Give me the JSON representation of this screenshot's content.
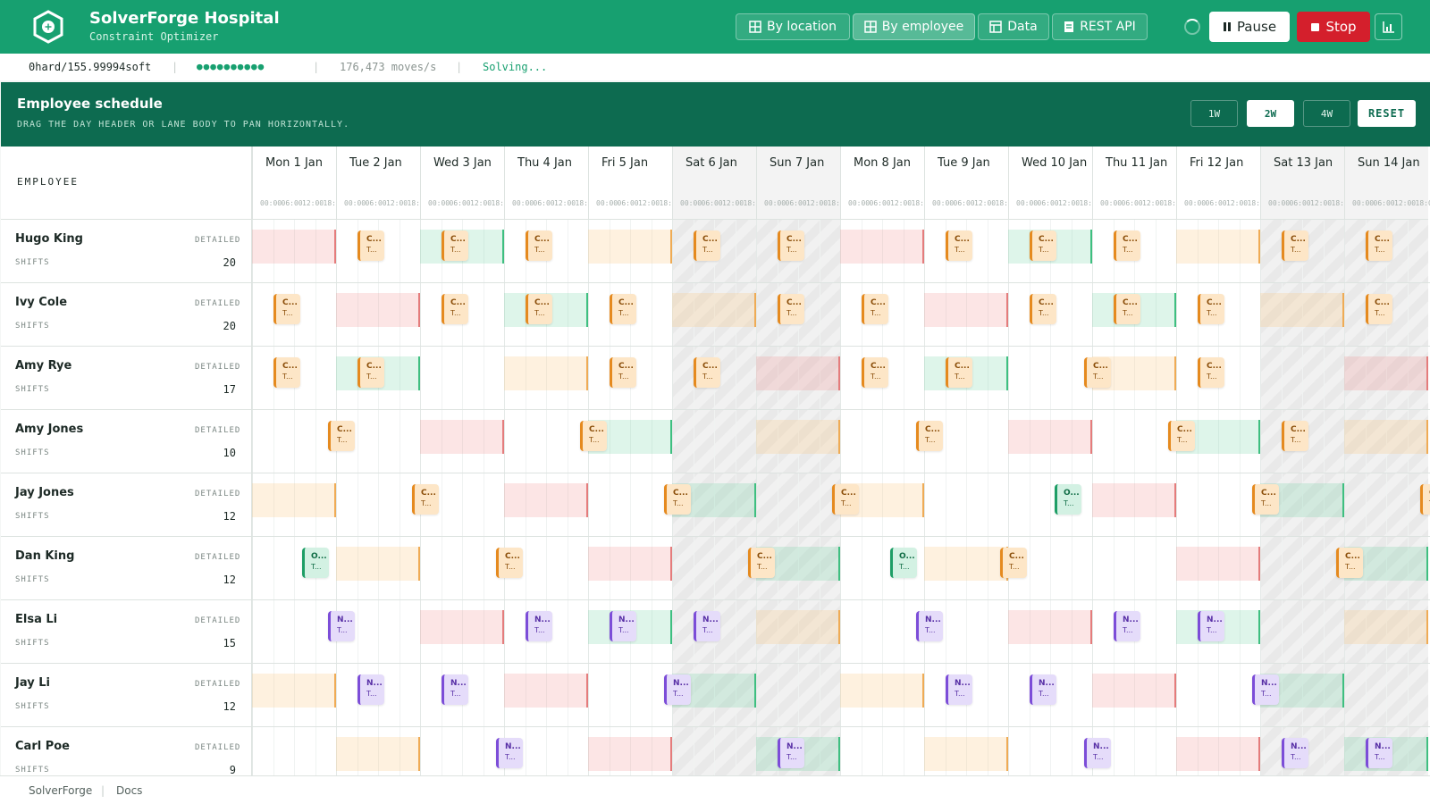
{
  "app": {
    "title": "SolverForge Hospital",
    "subtitle": "Constraint Optimizer"
  },
  "nav": [
    {
      "label": "By location",
      "icon": "grid-icon",
      "active": false
    },
    {
      "label": "By employee",
      "icon": "grid-icon",
      "active": true
    },
    {
      "label": "Data",
      "icon": "table-icon",
      "active": false
    },
    {
      "label": "REST API",
      "icon": "document-icon",
      "active": false
    }
  ],
  "controls": {
    "pause_label": "Pause",
    "stop_label": "Stop"
  },
  "status": {
    "score": "0hard/155.99994soft",
    "speed": "176,473 moves/s",
    "state": "Solving..."
  },
  "schedule": {
    "title": "Employee schedule",
    "hint": "DRAG THE DAY HEADER OR LANE BODY TO PAN HORIZONTALLY.",
    "zoom": [
      {
        "label": "1W",
        "active": false
      },
      {
        "label": "2W",
        "active": true
      },
      {
        "label": "4W",
        "active": false
      }
    ],
    "reset_label": "RESET",
    "employee_header": "EMPLOYEE",
    "detail_label": "DETAILED",
    "shifts_label": "SHIFTS",
    "hours": [
      "00:00",
      "06:00",
      "12:00",
      "18:00"
    ],
    "days": [
      {
        "label": "Mon 1 Jan",
        "weekend": false
      },
      {
        "label": "Tue 2 Jan",
        "weekend": false
      },
      {
        "label": "Wed 3 Jan",
        "weekend": false
      },
      {
        "label": "Thu 4 Jan",
        "weekend": false
      },
      {
        "label": "Fri 5 Jan",
        "weekend": false
      },
      {
        "label": "Sat 6 Jan",
        "weekend": true
      },
      {
        "label": "Sun 7 Jan",
        "weekend": true
      },
      {
        "label": "Mon 8 Jan",
        "weekend": false
      },
      {
        "label": "Tue 9 Jan",
        "weekend": false
      },
      {
        "label": "Wed 10 Jan",
        "weekend": false
      },
      {
        "label": "Thu 11 Jan",
        "weekend": false
      },
      {
        "label": "Fri 12 Jan",
        "weekend": false
      },
      {
        "label": "Sat 13 Jan",
        "weekend": true
      },
      {
        "label": "Sun 14 Jan",
        "weekend": true
      }
    ],
    "employees": [
      {
        "name": "Hugo King",
        "shifts": "20",
        "prefs": [
          [
            0,
            "unavailable"
          ],
          [
            2,
            "desired"
          ],
          [
            4,
            "undesired"
          ],
          [
            7,
            "unavailable"
          ],
          [
            9,
            "desired"
          ],
          [
            11,
            "undesired"
          ]
        ],
        "chips": [
          [
            1.25,
            "C...",
            "T...",
            "care"
          ],
          [
            2.25,
            "C...",
            "T...",
            "care"
          ],
          [
            3.25,
            "C...",
            "T...",
            "care"
          ],
          [
            5.25,
            "C...",
            "T...",
            "care"
          ],
          [
            6.25,
            "C...",
            "T...",
            "care"
          ],
          [
            8.25,
            "C...",
            "T...",
            "care"
          ],
          [
            9.25,
            "C...",
            "T...",
            "care"
          ],
          [
            10.25,
            "C...",
            "T...",
            "care"
          ],
          [
            12.25,
            "C...",
            "T...",
            "care"
          ],
          [
            13.25,
            "C...",
            "T...",
            "care"
          ]
        ]
      },
      {
        "name": "Ivy Cole",
        "shifts": "20",
        "prefs": [
          [
            1,
            "unavailable"
          ],
          [
            3,
            "desired"
          ],
          [
            5,
            "undesired"
          ],
          [
            8,
            "unavailable"
          ],
          [
            10,
            "desired"
          ],
          [
            12,
            "undesired"
          ]
        ],
        "chips": [
          [
            0.25,
            "C...",
            "T...",
            "care"
          ],
          [
            2.25,
            "C...",
            "T...",
            "care"
          ],
          [
            3.25,
            "C...",
            "T...",
            "care"
          ],
          [
            4.25,
            "C...",
            "T...",
            "care"
          ],
          [
            6.25,
            "C...",
            "T...",
            "care"
          ],
          [
            7.25,
            "C...",
            "T...",
            "care"
          ],
          [
            9.25,
            "C...",
            "T...",
            "care"
          ],
          [
            10.25,
            "C...",
            "T...",
            "care"
          ],
          [
            11.25,
            "C...",
            "T...",
            "care"
          ],
          [
            13.25,
            "C...",
            "T...",
            "care"
          ]
        ]
      },
      {
        "name": "Amy Rye",
        "shifts": "17",
        "prefs": [
          [
            1,
            "desired"
          ],
          [
            3,
            "undesired"
          ],
          [
            6,
            "unavailable"
          ],
          [
            8,
            "desired"
          ],
          [
            10,
            "undesired"
          ],
          [
            13,
            "unavailable"
          ]
        ],
        "chips": [
          [
            0.25,
            "C...",
            "T...",
            "care"
          ],
          [
            1.25,
            "C...",
            "T...",
            "care"
          ],
          [
            4.25,
            "C...",
            "T...",
            "care"
          ],
          [
            5.25,
            "C...",
            "T...",
            "care"
          ],
          [
            7.25,
            "C...",
            "T...",
            "care"
          ],
          [
            8.25,
            "C...",
            "T...",
            "care"
          ],
          [
            9.9,
            "C...",
            "T...",
            "care"
          ],
          [
            11.25,
            "C...",
            "T...",
            "care"
          ]
        ]
      },
      {
        "name": "Amy Jones",
        "shifts": "10",
        "prefs": [
          [
            2,
            "unavailable"
          ],
          [
            4,
            "desired"
          ],
          [
            6,
            "undesired"
          ],
          [
            9,
            "unavailable"
          ],
          [
            11,
            "desired"
          ],
          [
            13,
            "undesired"
          ]
        ],
        "chips": [
          [
            0.9,
            "C...",
            "T...",
            "care"
          ],
          [
            3.9,
            "C...",
            "T...",
            "care"
          ],
          [
            7.9,
            "C...",
            "T...",
            "care"
          ],
          [
            10.9,
            "C...",
            "T...",
            "care"
          ],
          [
            12.25,
            "C...",
            "T...",
            "care"
          ]
        ]
      },
      {
        "name": "Jay Jones",
        "shifts": "12",
        "prefs": [
          [
            0,
            "undesired"
          ],
          [
            3,
            "unavailable"
          ],
          [
            5,
            "desired"
          ],
          [
            7,
            "undesired"
          ],
          [
            10,
            "unavailable"
          ],
          [
            12,
            "desired"
          ]
        ],
        "chips": [
          [
            1.9,
            "C...",
            "T...",
            "care"
          ],
          [
            4.9,
            "C...",
            "T...",
            "care"
          ],
          [
            6.9,
            "C...",
            "T...",
            "care"
          ],
          [
            9.55,
            "O...",
            "T...",
            "ortho"
          ],
          [
            11.9,
            "C...",
            "T...",
            "care"
          ],
          [
            13.9,
            "C...",
            "T...",
            "care"
          ]
        ]
      },
      {
        "name": "Dan King",
        "shifts": "12",
        "prefs": [
          [
            1,
            "undesired"
          ],
          [
            4,
            "unavailable"
          ],
          [
            6,
            "desired"
          ],
          [
            8,
            "undesired"
          ],
          [
            11,
            "unavailable"
          ],
          [
            13,
            "desired"
          ]
        ],
        "chips": [
          [
            0.6,
            "O...",
            "T...",
            "ortho"
          ],
          [
            2.9,
            "C...",
            "T...",
            "care"
          ],
          [
            5.9,
            "C...",
            "T...",
            "care"
          ],
          [
            7.6,
            "O...",
            "T...",
            "ortho"
          ],
          [
            8.9,
            "C...",
            "T...",
            "care"
          ],
          [
            12.9,
            "C...",
            "T...",
            "care"
          ]
        ]
      },
      {
        "name": "Elsa Li",
        "shifts": "15",
        "prefs": [
          [
            2,
            "unavailable"
          ],
          [
            4,
            "desired"
          ],
          [
            6,
            "undesired"
          ],
          [
            9,
            "unavailable"
          ],
          [
            11,
            "desired"
          ],
          [
            13,
            "undesired"
          ]
        ],
        "chips": [
          [
            0.9,
            "N...",
            "T...",
            "night"
          ],
          [
            3.25,
            "N...",
            "T...",
            "night"
          ],
          [
            4.25,
            "N...",
            "T...",
            "night"
          ],
          [
            5.25,
            "N...",
            "T...",
            "night"
          ],
          [
            7.9,
            "N...",
            "T...",
            "night"
          ],
          [
            10.25,
            "N...",
            "T...",
            "night"
          ],
          [
            11.25,
            "N...",
            "T...",
            "night"
          ]
        ]
      },
      {
        "name": "Jay Li",
        "shifts": "12",
        "prefs": [
          [
            0,
            "undesired"
          ],
          [
            3,
            "unavailable"
          ],
          [
            5,
            "desired"
          ],
          [
            7,
            "undesired"
          ],
          [
            10,
            "unavailable"
          ],
          [
            12,
            "desired"
          ]
        ],
        "chips": [
          [
            1.25,
            "N...",
            "T...",
            "night"
          ],
          [
            2.25,
            "N...",
            "T...",
            "night"
          ],
          [
            4.9,
            "N...",
            "T...",
            "night"
          ],
          [
            8.25,
            "N...",
            "T...",
            "night"
          ],
          [
            9.25,
            "N...",
            "T...",
            "night"
          ],
          [
            11.9,
            "N...",
            "T...",
            "night"
          ]
        ]
      },
      {
        "name": "Carl Poe",
        "shifts": "9",
        "prefs": [
          [
            1,
            "undesired"
          ],
          [
            4,
            "unavailable"
          ],
          [
            6,
            "desired"
          ],
          [
            8,
            "undesired"
          ],
          [
            11,
            "unavailable"
          ],
          [
            13,
            "desired"
          ]
        ],
        "chips": [
          [
            2.9,
            "N...",
            "T...",
            "night"
          ],
          [
            6.25,
            "N...",
            "T...",
            "night"
          ],
          [
            9.9,
            "N...",
            "T...",
            "night"
          ],
          [
            12.25,
            "N...",
            "T...",
            "night"
          ],
          [
            13.25,
            "N...",
            "T...",
            "night"
          ]
        ]
      }
    ]
  },
  "footer": {
    "brand": "SolverForge",
    "docs": "Docs"
  },
  "colors": {
    "header": "#17a070",
    "panel_header": "#0d6b50",
    "stop": "#d41f2c",
    "care": "#e58a1f",
    "night": "#7c4dd8",
    "ortho": "#1e9e66",
    "unavailable": "#e47c7c",
    "undesired": "#efab55",
    "desired": "#3ebf80"
  }
}
